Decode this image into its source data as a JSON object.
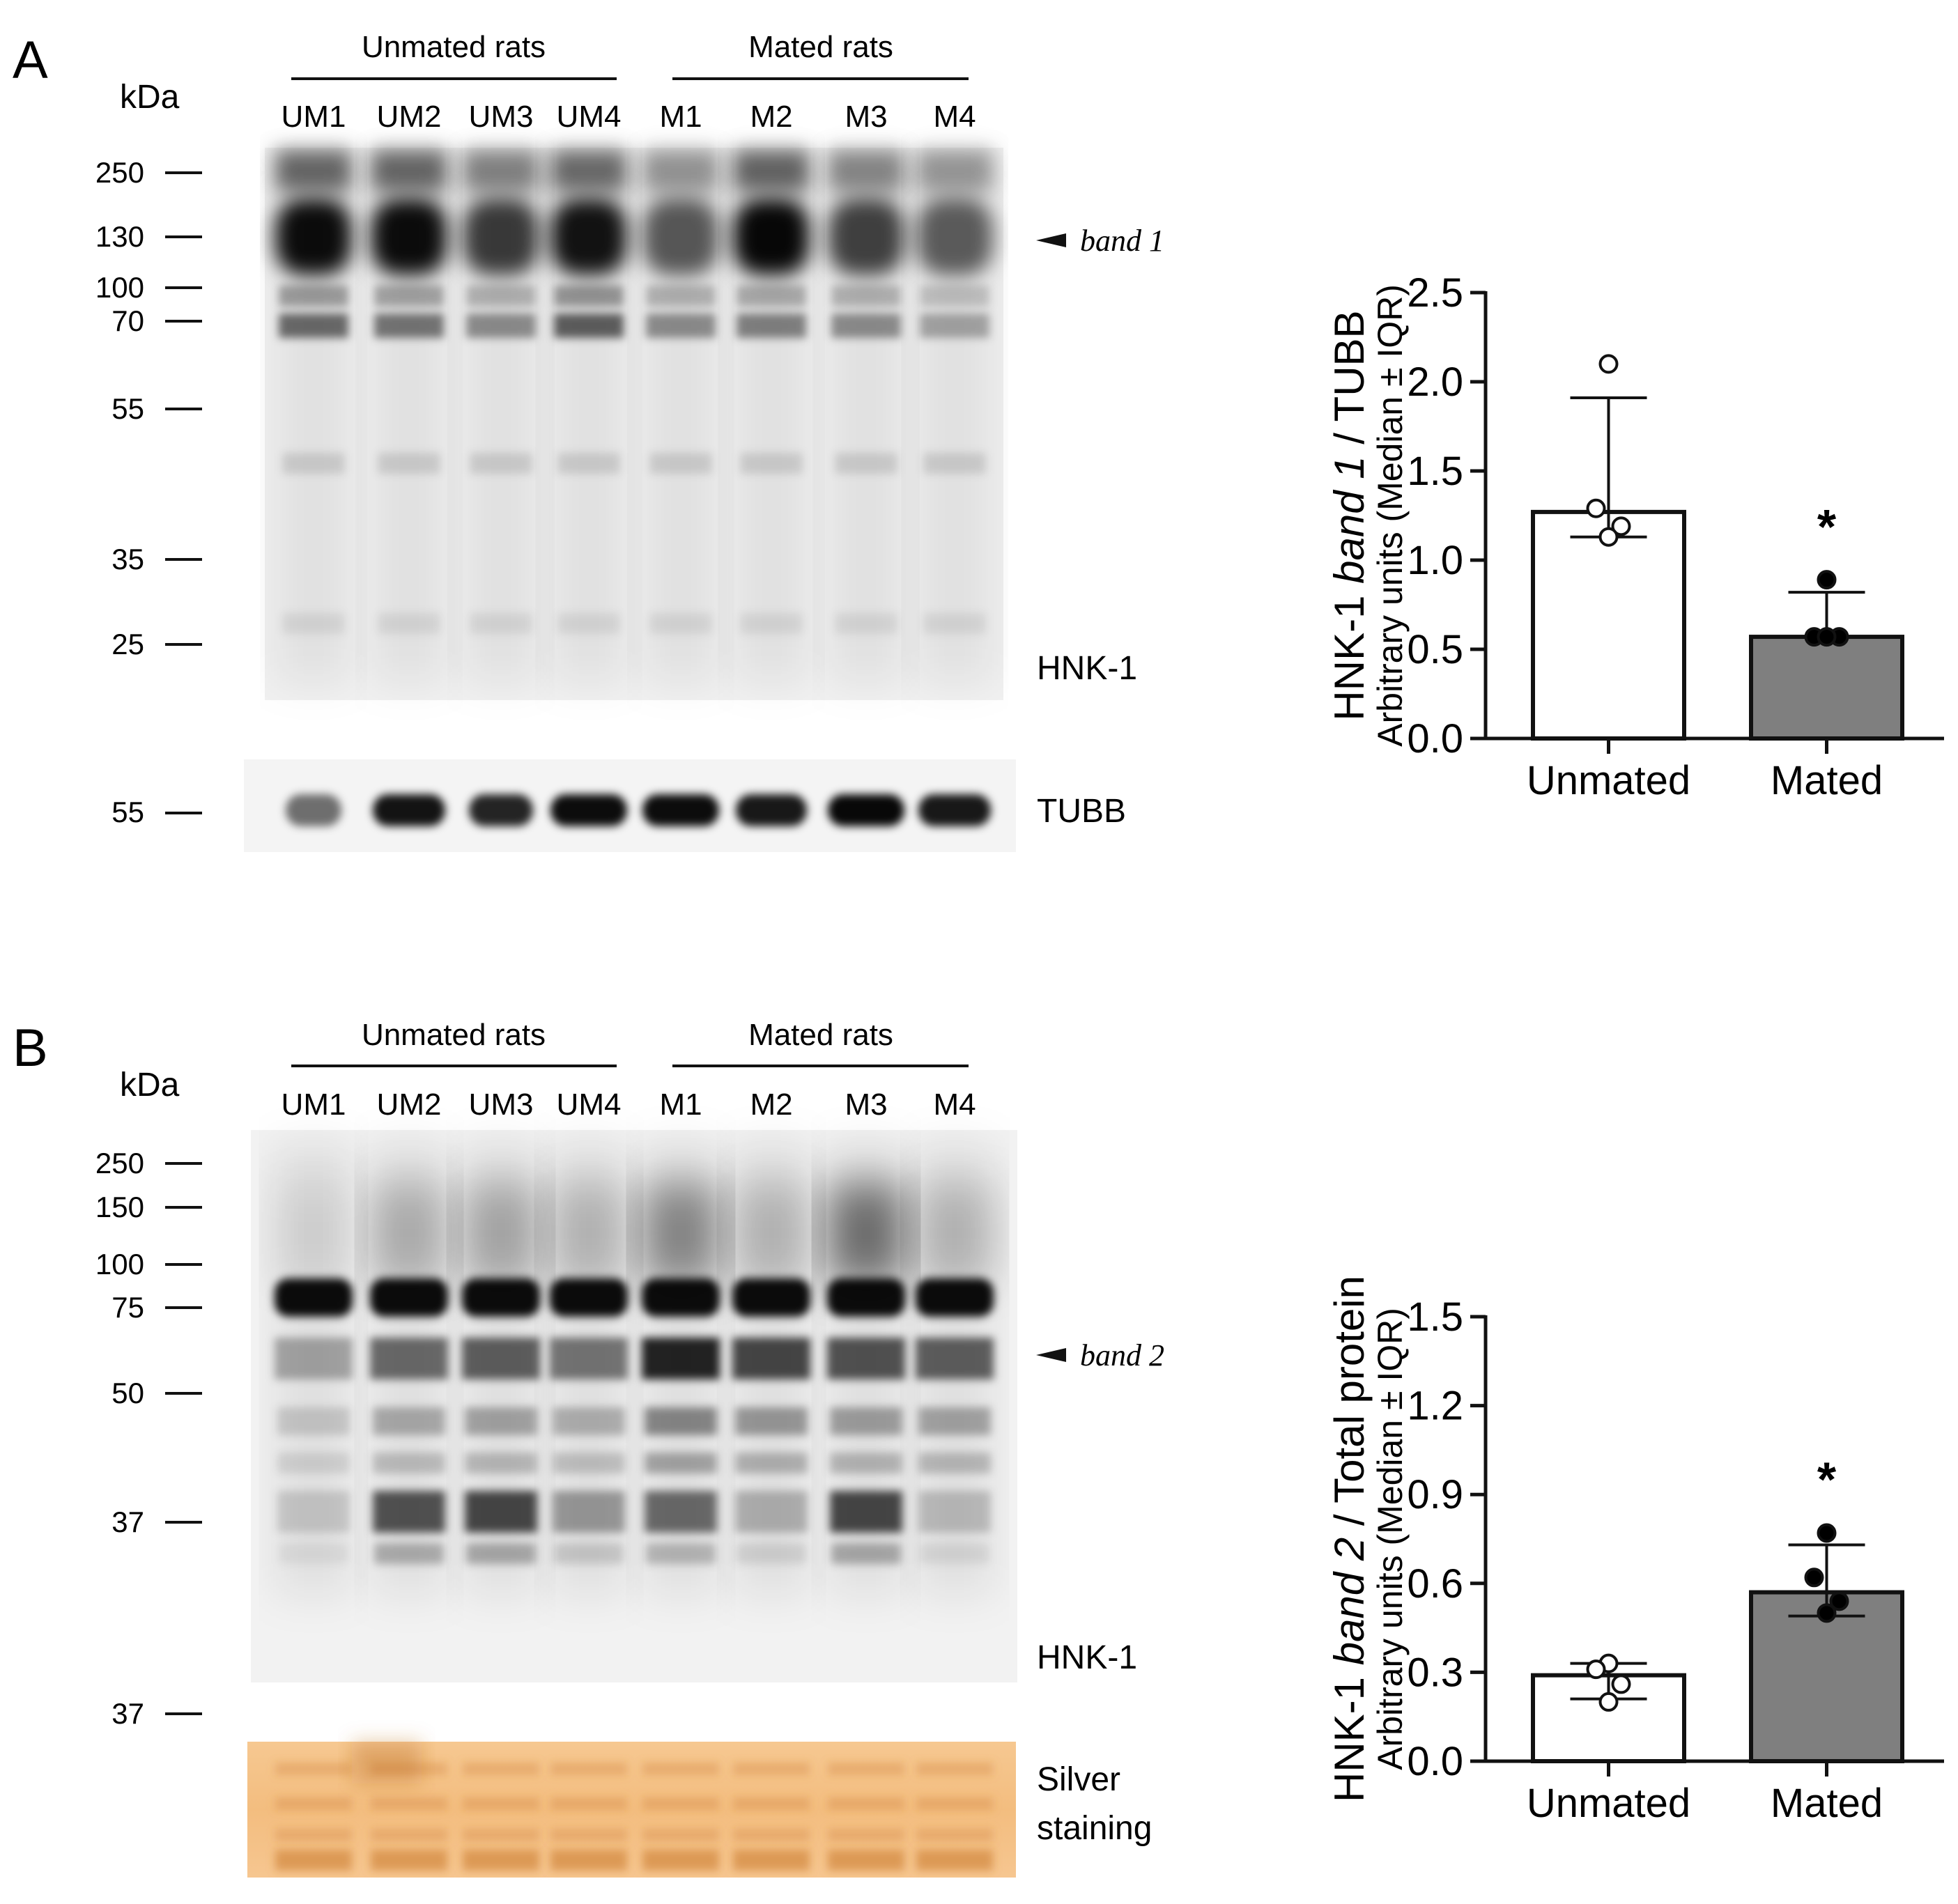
{
  "panelA": {
    "letter": "A",
    "blot": {
      "kda_label": "kDa",
      "group_left": "Unmated rats",
      "group_right": "Mated rats",
      "lanes": [
        "UM1",
        "UM2",
        "UM3",
        "UM4",
        "M1",
        "M2",
        "M3",
        "M4"
      ],
      "markers": [
        "250",
        "130",
        "100",
        "70",
        "55",
        "35",
        "25"
      ],
      "band_label": "band 1",
      "antibody_label": "HNK-1",
      "loading_marker": "55",
      "loading_label": "TUBB"
    }
  },
  "panelB": {
    "letter": "B",
    "blot": {
      "kda_label": "kDa",
      "group_left": "Unmated rats",
      "group_right": "Mated rats",
      "lanes": [
        "UM1",
        "UM2",
        "UM3",
        "UM4",
        "M1",
        "M2",
        "M3",
        "M4"
      ],
      "markers": [
        "250",
        "150",
        "100",
        "75",
        "50",
        "37"
      ],
      "band_label": "band 2",
      "antibody_label": "HNK-1",
      "loading_marker": "37",
      "loading_label_line1": "Silver",
      "loading_label_line2": "staining"
    }
  },
  "chart_data": [
    {
      "type": "bar",
      "panel": "A",
      "categories": [
        "Unmated",
        "Mated"
      ],
      "values": [
        1.27,
        0.57
      ],
      "error_low": [
        1.13,
        0.57
      ],
      "error_high": [
        1.91,
        0.82
      ],
      "points": [
        [
          2.1,
          1.29,
          1.19,
          1.13
        ],
        [
          0.89,
          0.57,
          0.57,
          0.57
        ]
      ],
      "bar_colors": [
        "#ffffff",
        "#7f7f7f"
      ],
      "point_fill": [
        "#ffffff",
        "#000000"
      ],
      "ylabel_prefix": "HNK-1 ",
      "ylabel_italic": "band 1",
      "ylabel_suffix": " / TUBB",
      "ylabel2": "Arbitrary units (Median ± IQR)",
      "ylim": [
        0,
        2.5
      ],
      "yticks": [
        "0.0",
        "0.5",
        "1.0",
        "1.5",
        "2.0",
        "2.5"
      ],
      "significance": [
        "",
        "*"
      ]
    },
    {
      "type": "bar",
      "panel": "B",
      "categories": [
        "Unmated",
        "Mated"
      ],
      "values": [
        0.29,
        0.57
      ],
      "error_low": [
        0.21,
        0.49
      ],
      "error_high": [
        0.33,
        0.73
      ],
      "points": [
        [
          0.33,
          0.31,
          0.26,
          0.2
        ],
        [
          0.77,
          0.62,
          0.54,
          0.5
        ]
      ],
      "bar_colors": [
        "#ffffff",
        "#7f7f7f"
      ],
      "point_fill": [
        "#ffffff",
        "#000000"
      ],
      "ylabel_prefix": "HNK-1 ",
      "ylabel_italic": "band 2",
      "ylabel_suffix": " / Total protein",
      "ylabel2": "Arbitrary units (Median ± IQR)",
      "ylim": [
        0,
        1.5
      ],
      "yticks": [
        "0.0",
        "0.3",
        "0.6",
        "0.9",
        "1.2",
        "1.5"
      ],
      "significance": [
        "",
        "*"
      ]
    }
  ]
}
